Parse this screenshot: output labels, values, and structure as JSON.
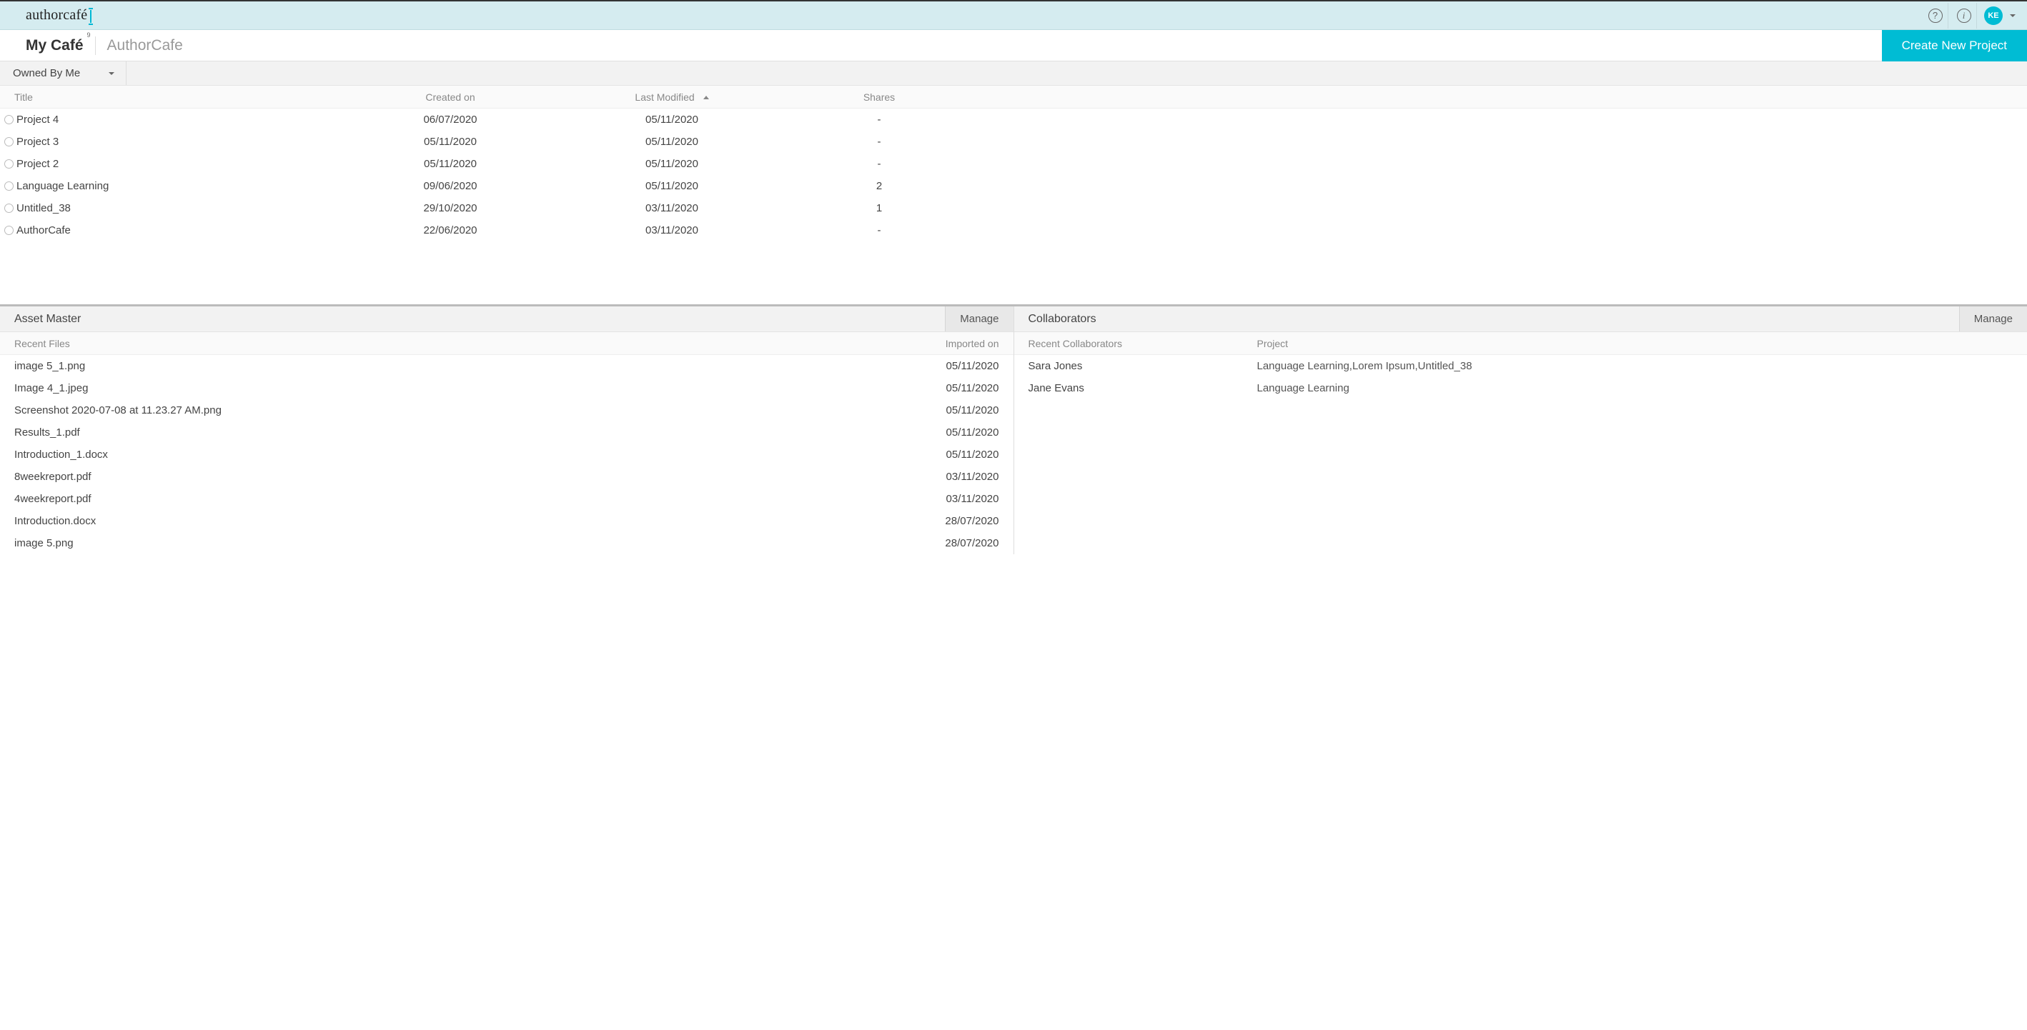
{
  "brand": {
    "text": "authorcafé"
  },
  "topbar": {
    "help_icon": "?",
    "info_icon": "i",
    "avatar_initials": "KE"
  },
  "nav": {
    "tabs": [
      {
        "label": "My Café",
        "badge": "9",
        "active": true
      },
      {
        "label": "AuthorCafe",
        "active": false
      }
    ],
    "create_button": "Create New Project"
  },
  "filter": {
    "label": "Owned By Me"
  },
  "projects": {
    "columns": {
      "title": "Title",
      "created": "Created on",
      "modified": "Last Modified",
      "shares": "Shares"
    },
    "sort_column": "modified",
    "sort_direction": "asc",
    "rows": [
      {
        "title": "Project 4",
        "created": "06/07/2020",
        "modified": "05/11/2020",
        "shares": "-"
      },
      {
        "title": "Project 3",
        "created": "05/11/2020",
        "modified": "05/11/2020",
        "shares": "-"
      },
      {
        "title": "Project 2",
        "created": "05/11/2020",
        "modified": "05/11/2020",
        "shares": "-"
      },
      {
        "title": "Language Learning",
        "created": "09/06/2020",
        "modified": "05/11/2020",
        "shares": "2"
      },
      {
        "title": "Untitled_38",
        "created": "29/10/2020",
        "modified": "03/11/2020",
        "shares": "1"
      },
      {
        "title": "AuthorCafe",
        "created": "22/06/2020",
        "modified": "03/11/2020",
        "shares": "-"
      }
    ]
  },
  "asset_master": {
    "title": "Asset Master",
    "manage": "Manage",
    "columns": {
      "name": "Recent Files",
      "date": "Imported on"
    },
    "rows": [
      {
        "name": "image 5_1.png",
        "date": "05/11/2020"
      },
      {
        "name": "Image 4_1.jpeg",
        "date": "05/11/2020"
      },
      {
        "name": "Screenshot 2020-07-08 at 11.23.27 AM.png",
        "date": "05/11/2020"
      },
      {
        "name": "Results_1.pdf",
        "date": "05/11/2020"
      },
      {
        "name": "Introduction_1.docx",
        "date": "05/11/2020"
      },
      {
        "name": "8weekreport.pdf",
        "date": "03/11/2020"
      },
      {
        "name": "4weekreport.pdf",
        "date": "03/11/2020"
      },
      {
        "name": "Introduction.docx",
        "date": "28/07/2020"
      },
      {
        "name": "image 5.png",
        "date": "28/07/2020"
      }
    ]
  },
  "collaborators": {
    "title": "Collaborators",
    "manage": "Manage",
    "columns": {
      "name": "Recent Collaborators",
      "project": "Project"
    },
    "rows": [
      {
        "name": "Sara Jones",
        "project": "Language Learning,Lorem Ipsum,Untitled_38"
      },
      {
        "name": "Jane Evans",
        "project": "Language Learning"
      }
    ]
  },
  "colors": {
    "topbar_bg": "#d5ecf0",
    "accent": "#00bcd4",
    "text_primary": "#333333",
    "text_muted": "#888888",
    "border": "#e0e0e0",
    "panel_header_bg": "#f2f2f2"
  }
}
